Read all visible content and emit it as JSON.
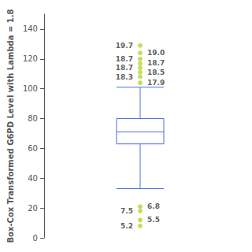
{
  "chart_data": {
    "type": "boxplot",
    "ylabel": "Box-Cox Transformed G6PD Level with Lambda = 1.8",
    "ylim": [
      0,
      150
    ],
    "yticks": [
      0,
      20,
      40,
      60,
      80,
      100,
      120,
      140
    ],
    "box": {
      "whisker_low": 33,
      "q1": 63,
      "median": 71,
      "q3": 80,
      "whisker_high": 101
    },
    "outliers": [
      {
        "value": 104,
        "label": "17.9"
      },
      {
        "value": 108,
        "label": "18.3"
      },
      {
        "value": 111,
        "label": "18.5"
      },
      {
        "value": 114,
        "label": "18.7"
      },
      {
        "value": 117,
        "label": "18.7"
      },
      {
        "value": 120,
        "label": "18.7"
      },
      {
        "value": 124,
        "label": "19.0"
      },
      {
        "value": 129,
        "label": "19.7"
      },
      {
        "value": 21,
        "label": "6.8"
      },
      {
        "value": 18,
        "label": "7.5"
      },
      {
        "value": 12,
        "label": "5.5"
      },
      {
        "value": 8,
        "label": "5.2"
      }
    ],
    "grid": false,
    "tick_labels": "y"
  }
}
